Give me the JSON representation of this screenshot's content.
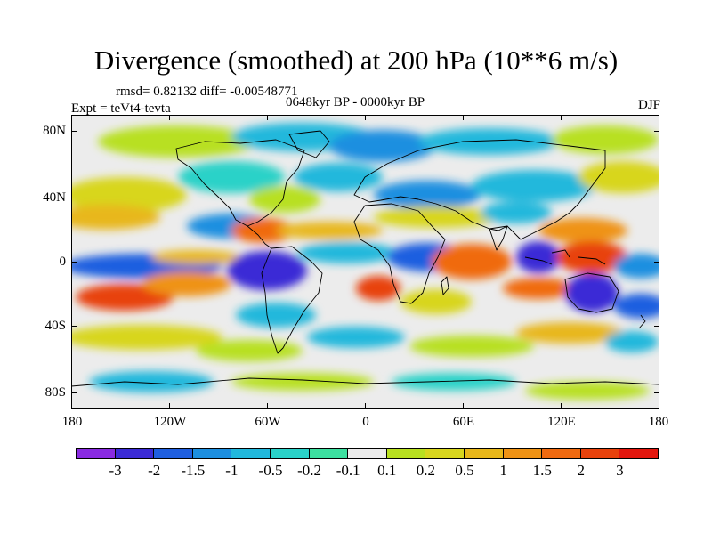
{
  "title": "Divergence (smoothed) at 200 hPa (10**6 m/s)",
  "stats": "rmsd= 0.82132 diff= -0.00548771",
  "experiment": "Expt = teVt4-tevta",
  "period": "0648kyr BP - 0000kyr BP",
  "season": "DJF",
  "map": {
    "lat_ticks": [
      "80N",
      "40N",
      "0",
      "40S",
      "80S"
    ],
    "lon_ticks": [
      "180",
      "120W",
      "60W",
      "0",
      "60E",
      "120E",
      "180"
    ],
    "colorbar": {
      "colors": [
        "#8a2be2",
        "#3b2bd6",
        "#1f5fe0",
        "#1d8fe0",
        "#21b8dc",
        "#2ad2c8",
        "#3ce0a0",
        "#ebebeb",
        "#b8e020",
        "#d8d61e",
        "#e8b71a",
        "#ef9315",
        "#f06a10",
        "#e8420c",
        "#e3160d"
      ],
      "labels": [
        "-3",
        "-2",
        "-1.5",
        "-1",
        "-0.5",
        "-0.2",
        "-0.1",
        "0.1",
        "0.2",
        "0.5",
        "1",
        "1.5",
        "2",
        "3"
      ]
    }
  }
}
